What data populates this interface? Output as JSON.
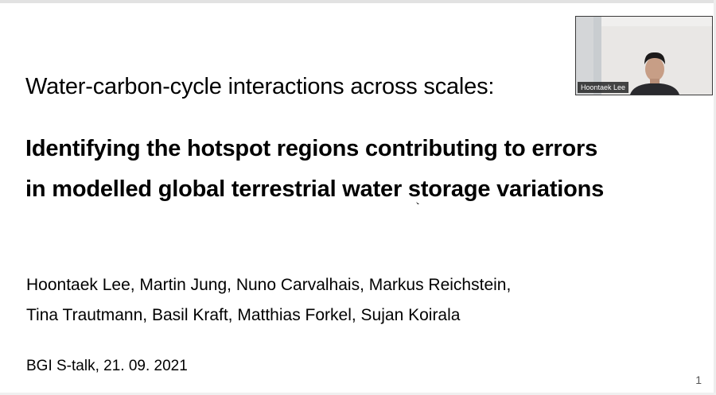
{
  "slide": {
    "subtitle": "Water-carbon-cycle interactions across scales:",
    "title_lines": [
      "Identifying the hotspot regions contributing to errors",
      "in modelled global terrestrial water storage variations"
    ],
    "author_lines": [
      "Hoontaek Lee, Martin Jung, Nuno Carvalhais, Markus Reichstein,",
      "Tina Trautmann, Basil Kraft, Matthias Forkel, Sujan Koirala"
    ],
    "event": "BGI S-talk, 21. 09. 2021",
    "page_number": "1"
  },
  "video": {
    "participant_name": "Hoontaek Lee"
  },
  "colors": {
    "background": "#ffffff",
    "text": "#000000",
    "name_tag_bg": "#1e1e1e"
  }
}
